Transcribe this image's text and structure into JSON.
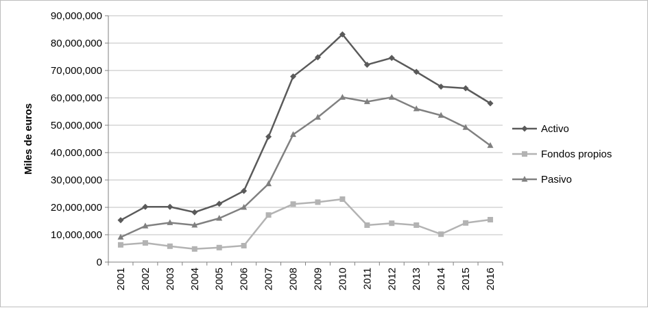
{
  "chart_data": {
    "type": "line",
    "title": "",
    "xlabel": "",
    "ylabel": "Miles de euros",
    "categories": [
      "2001",
      "2002",
      "2003",
      "2004",
      "2005",
      "2006",
      "2007",
      "2008",
      "2009",
      "2010",
      "2011",
      "2012",
      "2013",
      "2014",
      "2015",
      "2016"
    ],
    "y_ticks": [
      "0",
      "10,000,000",
      "20,000,000",
      "30,000,000",
      "40,000,000",
      "50,000,000",
      "60,000,000",
      "70,000,000",
      "80,000,000",
      "90,000,000"
    ],
    "ylim": [
      0,
      90000000
    ],
    "grid": "horizontal",
    "legend_position": "right",
    "series": [
      {
        "name": "Activo",
        "marker": "diamond",
        "color": "#5a5a5a",
        "values": [
          15300000,
          20200000,
          20200000,
          18200000,
          21300000,
          26000000,
          45800000,
          67800000,
          74800000,
          83200000,
          72100000,
          74600000,
          69500000,
          64100000,
          63500000,
          58000000
        ]
      },
      {
        "name": "Fondos propios",
        "marker": "square",
        "color": "#b3b3b3",
        "values": [
          6300000,
          7000000,
          5800000,
          4800000,
          5300000,
          6000000,
          17200000,
          21200000,
          21900000,
          23000000,
          13500000,
          14200000,
          13500000,
          10200000,
          14300000,
          15500000
        ]
      },
      {
        "name": "Pasivo",
        "marker": "triangle",
        "color": "#808080",
        "values": [
          9100000,
          13200000,
          14400000,
          13500000,
          16000000,
          20000000,
          28600000,
          46600000,
          52900000,
          60200000,
          58600000,
          60200000,
          56000000,
          53600000,
          49200000,
          42600000
        ]
      }
    ]
  }
}
